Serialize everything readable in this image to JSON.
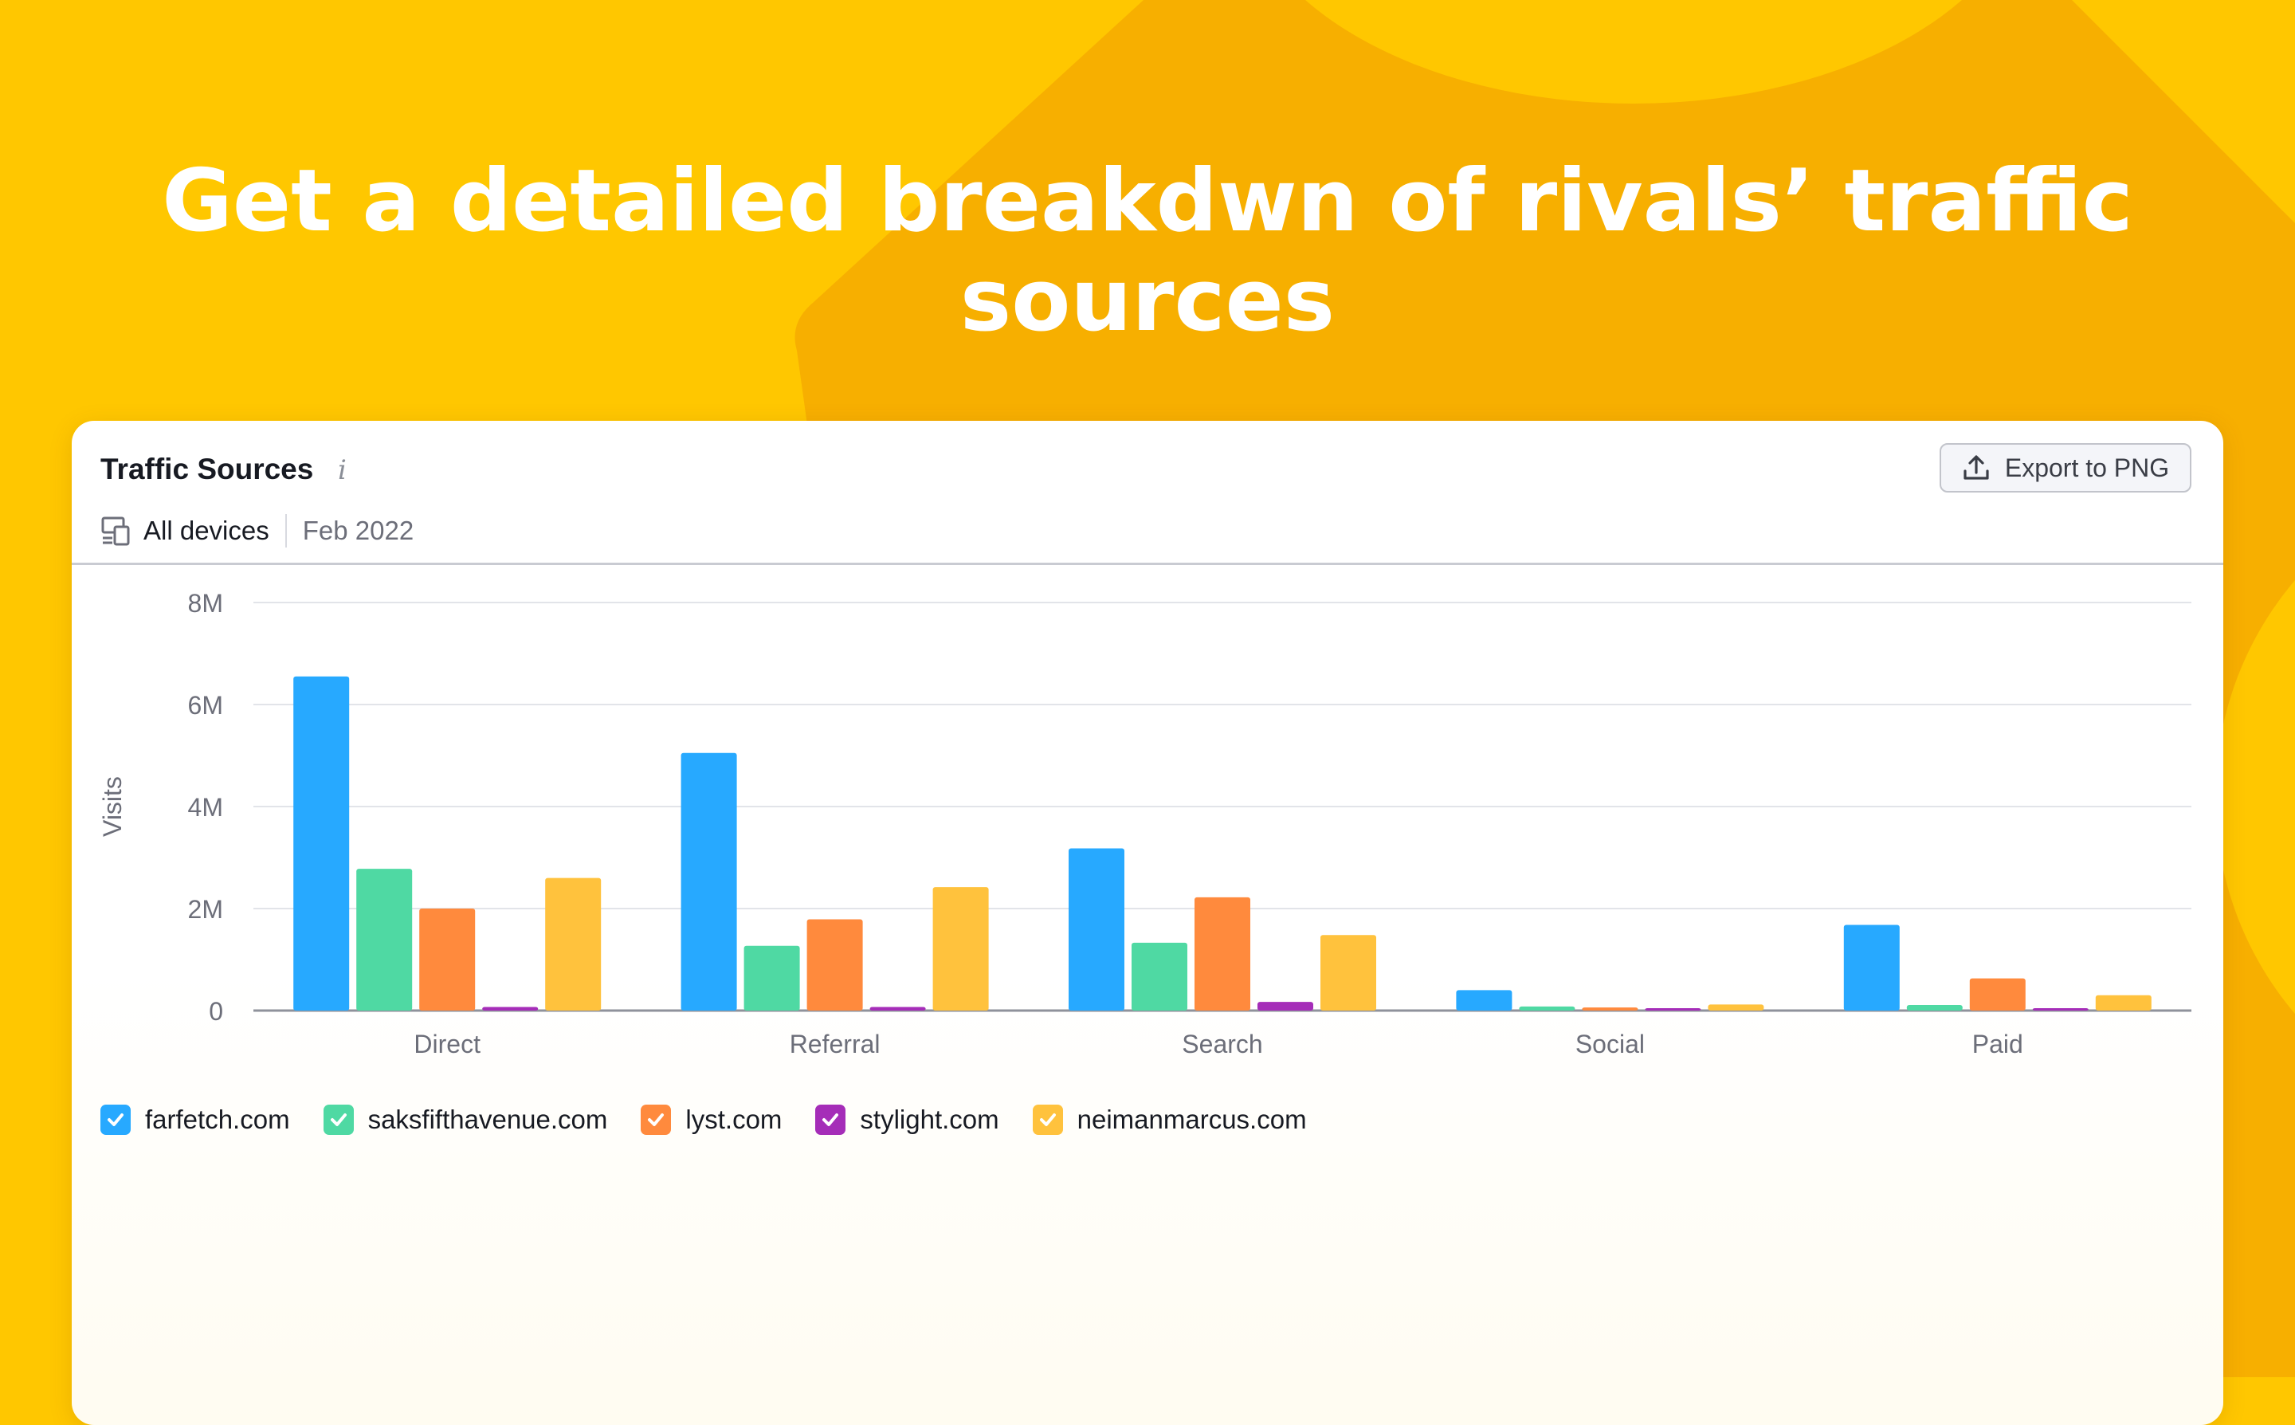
{
  "headline": "Get a detailed breakdwn of rivals’ traffic sources",
  "card": {
    "title": "Traffic Sources",
    "info_icon": "i",
    "devices_label": "All devices",
    "date_label": "Feb 2022",
    "export_label": "Export to PNG"
  },
  "chart_data": {
    "type": "bar",
    "title": "Traffic Sources",
    "xlabel": "",
    "ylabel": "Visits",
    "categories": [
      "Direct",
      "Referral",
      "Search",
      "Social",
      "Paid"
    ],
    "ylim": [
      0,
      8000000
    ],
    "yticks": [
      0,
      2000000,
      4000000,
      6000000,
      8000000
    ],
    "ytick_labels": [
      "0",
      "2M",
      "4M",
      "6M",
      "8M"
    ],
    "grid": true,
    "legend_position": "bottom-left",
    "series": [
      {
        "name": "farfetch.com",
        "color": "#27A9FF",
        "values": [
          6550000,
          5050000,
          3180000,
          400000,
          1680000
        ]
      },
      {
        "name": "saksfifthavenue.com",
        "color": "#4FD9A3",
        "values": [
          2780000,
          1270000,
          1330000,
          80000,
          110000
        ]
      },
      {
        "name": "lyst.com",
        "color": "#FF8A3D",
        "values": [
          2000000,
          1790000,
          2220000,
          60000,
          630000
        ]
      },
      {
        "name": "stylight.com",
        "color": "#A52DB8",
        "values": [
          70000,
          70000,
          170000,
          15000,
          20000
        ]
      },
      {
        "name": "neimanmarcus.com",
        "color": "#FFC23D",
        "values": [
          2600000,
          2420000,
          1480000,
          120000,
          300000
        ]
      }
    ]
  }
}
